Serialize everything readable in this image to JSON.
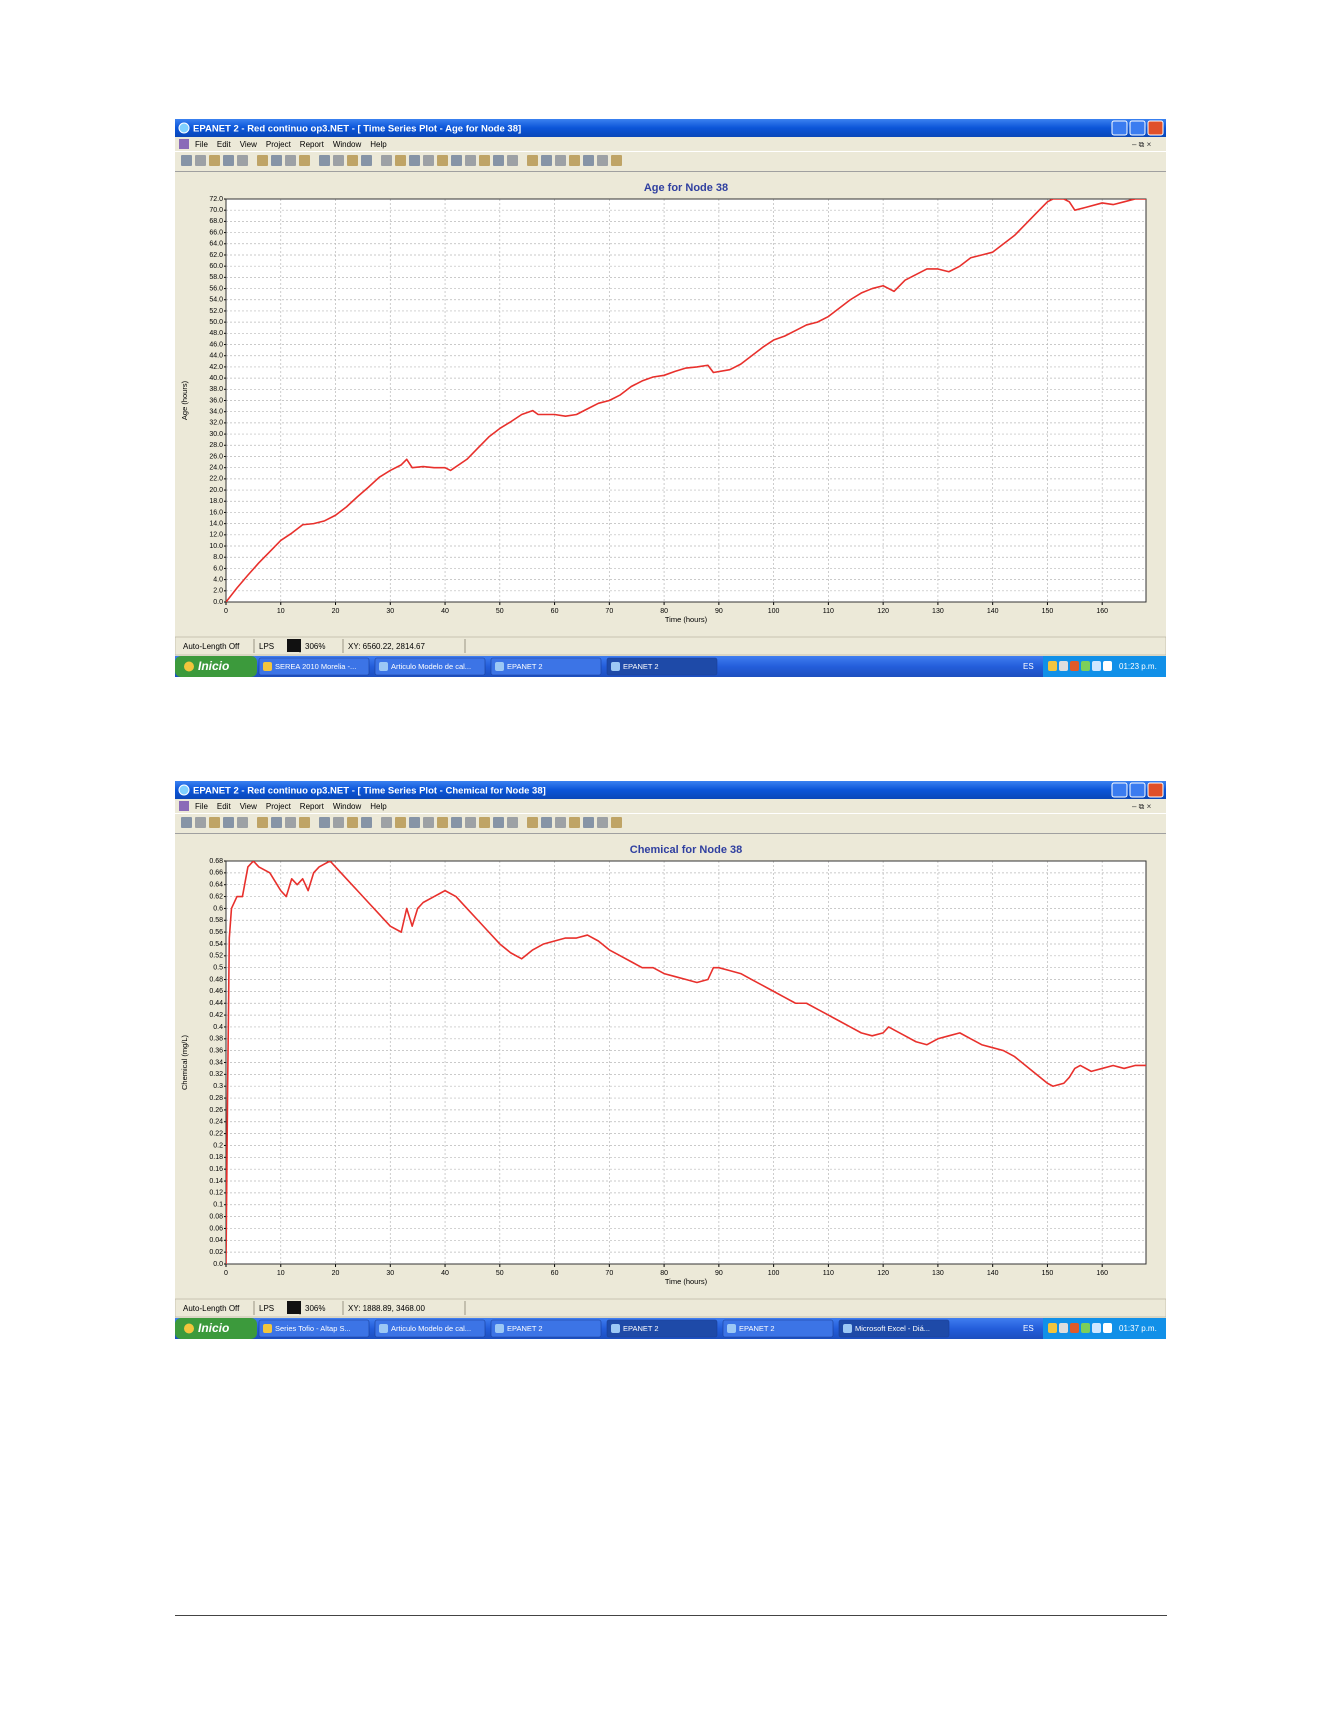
{
  "windows": [
    {
      "title": "EPANET 2 - Red continuo op3.NET - [ Time Series Plot - Age for Node 38]",
      "menu": [
        "File",
        "Edit",
        "View",
        "Project",
        "Report",
        "Window",
        "Help"
      ],
      "status": [
        "Auto-Length Off",
        "LPS",
        "306%",
        "XY: 6560.22, 2814.67"
      ],
      "taskbar": {
        "start": "Inicio",
        "items": [
          "SEREA 2010 Morelia -...",
          "Articulo Modelo de cal...",
          "EPANET 2",
          "EPANET 2"
        ],
        "language": "ES",
        "clock": "01:23 p.m."
      }
    },
    {
      "title": "EPANET 2 - Red continuo op3.NET - [ Time Series Plot - Chemical for Node 38]",
      "menu": [
        "File",
        "Edit",
        "View",
        "Project",
        "Report",
        "Window",
        "Help"
      ],
      "status": [
        "Auto-Length Off",
        "LPS",
        "306%",
        "XY: 1888.89, 3468.00"
      ],
      "taskbar": {
        "start": "Inicio",
        "items": [
          "Series Tofio - Altap S...",
          "Articulo Modelo de cal...",
          "EPANET 2",
          "EPANET 2",
          "EPANET 2",
          "Microsoft Excel - Diá..."
        ],
        "language": "ES",
        "clock": "01:37 p.m."
      }
    }
  ],
  "chart_data": [
    {
      "type": "line",
      "title": "Age for Node 38",
      "x_label": "Time (hours)",
      "y_label": "Age (hours)",
      "color": "#e8302c",
      "grid": true,
      "xlim": [
        0,
        168
      ],
      "xticks": [
        0,
        10,
        20,
        30,
        40,
        50,
        60,
        70,
        80,
        90,
        100,
        110,
        120,
        130,
        140,
        150,
        160
      ],
      "ylim": [
        0,
        72
      ],
      "yticks": [
        {
          "value": 0,
          "label": "0.0"
        },
        {
          "value": 2,
          "label": "2.0"
        },
        {
          "value": 4,
          "label": "4.0"
        },
        {
          "value": 6,
          "label": "6.0"
        },
        {
          "value": 8,
          "label": "8.0"
        },
        {
          "value": 10,
          "label": "10.0"
        },
        {
          "value": 12,
          "label": "12.0"
        },
        {
          "value": 14,
          "label": "14.0"
        },
        {
          "value": 16,
          "label": "16.0"
        },
        {
          "value": 18,
          "label": "18.0"
        },
        {
          "value": 20,
          "label": "20.0"
        },
        {
          "value": 22,
          "label": "22.0"
        },
        {
          "value": 24,
          "label": "24.0"
        },
        {
          "value": 26,
          "label": "26.0"
        },
        {
          "value": 28,
          "label": "28.0"
        },
        {
          "value": 30,
          "label": "30.0"
        },
        {
          "value": 32,
          "label": "32.0"
        },
        {
          "value": 34,
          "label": "34.0"
        },
        {
          "value": 36,
          "label": "36.0"
        },
        {
          "value": 38,
          "label": "38.0"
        },
        {
          "value": 40,
          "label": "40.0"
        },
        {
          "value": 42,
          "label": "42.0"
        },
        {
          "value": 44,
          "label": "44.0"
        },
        {
          "value": 46,
          "label": "46.0"
        },
        {
          "value": 48,
          "label": "48.0"
        },
        {
          "value": 50,
          "label": "50.0"
        },
        {
          "value": 52,
          "label": "52.0"
        },
        {
          "value": 54,
          "label": "54.0"
        },
        {
          "value": 56,
          "label": "56.0"
        },
        {
          "value": 58,
          "label": "58.0"
        },
        {
          "value": 60,
          "label": "60.0"
        },
        {
          "value": 62,
          "label": "62.0"
        },
        {
          "value": 64,
          "label": "64.0"
        },
        {
          "value": 66,
          "label": "66.0"
        },
        {
          "value": 68,
          "label": "68.0"
        },
        {
          "value": 70,
          "label": "70.0"
        },
        {
          "value": 72,
          "label": "72.0"
        }
      ],
      "x": [
        0,
        2,
        4,
        6,
        8,
        10,
        12,
        14,
        16,
        18,
        20,
        22,
        24,
        26,
        28,
        30,
        32,
        33,
        34,
        36,
        38,
        40,
        41,
        44,
        46,
        48,
        50,
        52,
        54,
        56,
        57,
        58,
        60,
        62,
        64,
        66,
        68,
        70,
        72,
        74,
        76,
        78,
        80,
        82,
        84,
        86,
        88,
        89,
        92,
        94,
        96,
        98,
        100,
        102,
        104,
        106,
        108,
        110,
        112,
        114,
        116,
        118,
        120,
        122,
        124,
        126,
        128,
        130,
        132,
        134,
        136,
        138,
        140,
        142,
        144,
        146,
        148,
        150,
        151,
        153,
        154,
        155,
        157,
        160,
        162,
        164,
        166,
        168
      ],
      "values": [
        0,
        2.5,
        4.8,
        7,
        9,
        11,
        12.3,
        13.8,
        14,
        14.5,
        15.5,
        17,
        18.8,
        20.5,
        22.3,
        23.5,
        24.5,
        25.5,
        24,
        24.2,
        24,
        24,
        23.5,
        25.5,
        27.5,
        29.5,
        31,
        32.2,
        33.5,
        34.2,
        33.5,
        33.5,
        33.5,
        33.2,
        33.5,
        34.5,
        35.5,
        36,
        37,
        38.5,
        39.5,
        40.2,
        40.5,
        41.2,
        41.8,
        42,
        42.3,
        41,
        41.5,
        42.5,
        44,
        45.5,
        46.8,
        47.5,
        48.5,
        49.5,
        50,
        51,
        52.5,
        54,
        55.2,
        56,
        56.5,
        55.5,
        57.5,
        58.5,
        59.5,
        59.5,
        59,
        60,
        61.5,
        62,
        62.5,
        64,
        65.5,
        67.5,
        69.5,
        71.5,
        72,
        72,
        71.5,
        70,
        70.5,
        71.3,
        71,
        71.5,
        72,
        72
      ]
    },
    {
      "type": "line",
      "title": "Chemical for Node 38",
      "x_label": "Time (hours)",
      "y_label": "Chemical (mg/L)",
      "color": "#e8302c",
      "grid": true,
      "xlim": [
        0,
        168
      ],
      "xticks": [
        0,
        10,
        20,
        30,
        40,
        50,
        60,
        70,
        80,
        90,
        100,
        110,
        120,
        130,
        140,
        150,
        160
      ],
      "ylim": [
        0,
        0.68
      ],
      "yticks": [
        {
          "value": 0,
          "label": "0.0"
        },
        0.02,
        0.04,
        0.06,
        0.08,
        0.1,
        0.12,
        0.14,
        0.16,
        0.18,
        0.2,
        0.22,
        0.24,
        0.26,
        0.28,
        0.3,
        0.32,
        0.34,
        0.36,
        0.38,
        0.4,
        0.42,
        0.44,
        0.46,
        0.48,
        0.5,
        0.52,
        0.54,
        0.56,
        0.58,
        0.6,
        0.62,
        0.64,
        0.66,
        0.68
      ],
      "x": [
        0,
        0.3,
        0.6,
        1,
        2,
        3,
        4,
        5,
        6,
        8,
        10,
        11,
        12,
        13,
        14,
        15,
        16,
        17,
        18,
        19,
        20,
        22,
        24,
        26,
        28,
        30,
        32,
        33,
        34,
        35,
        36,
        38,
        40,
        42,
        44,
        46,
        48,
        50,
        52,
        54,
        56,
        58,
        60,
        62,
        64,
        66,
        68,
        70,
        72,
        74,
        76,
        78,
        80,
        82,
        84,
        86,
        88,
        89,
        90,
        92,
        94,
        96,
        98,
        100,
        102,
        104,
        106,
        108,
        110,
        112,
        114,
        116,
        118,
        120,
        121,
        122,
        124,
        126,
        128,
        130,
        132,
        134,
        136,
        138,
        140,
        142,
        144,
        146,
        148,
        150,
        151,
        153,
        154,
        155,
        156,
        158,
        160,
        162,
        164,
        166,
        168
      ],
      "values": [
        0,
        0.3,
        0.55,
        0.6,
        0.62,
        0.62,
        0.67,
        0.68,
        0.67,
        0.66,
        0.63,
        0.62,
        0.65,
        0.64,
        0.65,
        0.63,
        0.66,
        0.67,
        0.675,
        0.68,
        0.67,
        0.65,
        0.63,
        0.61,
        0.59,
        0.57,
        0.56,
        0.6,
        0.57,
        0.6,
        0.61,
        0.62,
        0.63,
        0.62,
        0.6,
        0.58,
        0.56,
        0.54,
        0.525,
        0.515,
        0.53,
        0.54,
        0.545,
        0.55,
        0.55,
        0.555,
        0.545,
        0.53,
        0.52,
        0.51,
        0.5,
        0.5,
        0.49,
        0.485,
        0.48,
        0.475,
        0.48,
        0.5,
        0.5,
        0.495,
        0.49,
        0.48,
        0.47,
        0.46,
        0.45,
        0.44,
        0.44,
        0.43,
        0.42,
        0.41,
        0.4,
        0.39,
        0.385,
        0.39,
        0.4,
        0.395,
        0.385,
        0.375,
        0.37,
        0.38,
        0.385,
        0.39,
        0.38,
        0.37,
        0.365,
        0.36,
        0.35,
        0.335,
        0.32,
        0.305,
        0.3,
        0.305,
        0.315,
        0.33,
        0.335,
        0.325,
        0.33,
        0.335,
        0.33,
        0.335,
        0.335
      ]
    }
  ]
}
